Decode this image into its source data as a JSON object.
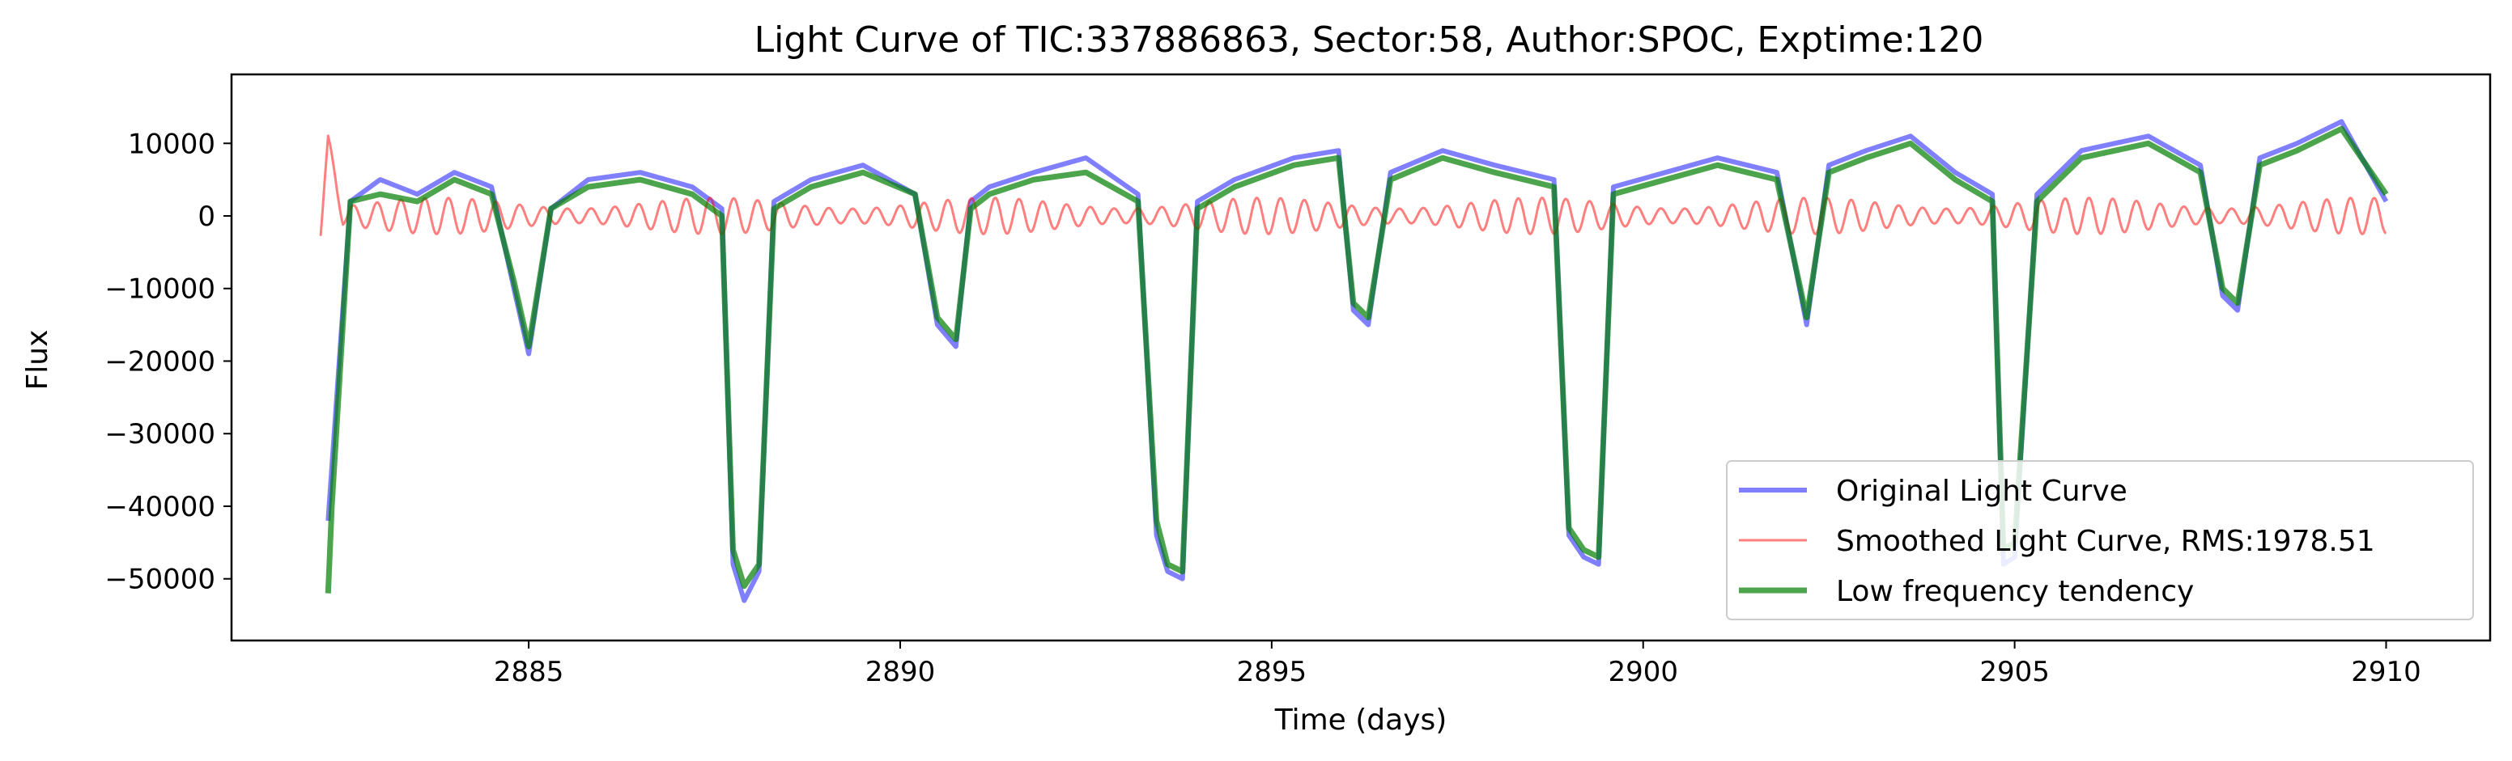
{
  "chart_data": {
    "type": "line",
    "title": "Light Curve of TIC:337886863, Sector:58, Author:SPOC, Exptime:120",
    "xlabel": "Time (days)",
    "ylabel": "Flux",
    "xlim": [
      2881.0,
      2911.4
    ],
    "ylim": [
      -58500,
      19500
    ],
    "xticks": [
      2885,
      2890,
      2895,
      2900,
      2905,
      2910
    ],
    "xtick_labels": [
      "2885",
      "2890",
      "2895",
      "2900",
      "2905",
      "2910"
    ],
    "yticks": [
      10000,
      0,
      -10000,
      -20000,
      -30000,
      -40000,
      -50000
    ],
    "ytick_labels": [
      "10000",
      "0",
      "−10000",
      "−20000",
      "−30000",
      "−40000",
      "−50000"
    ],
    "grid": false,
    "legend_position": "lower-right",
    "series": [
      {
        "name": "Original Light Curve",
        "color": "#0000ff",
        "opacity": 0.5,
        "width": 6,
        "x": [
          2882.3,
          2882.6,
          2883.0,
          2883.5,
          2884.0,
          2884.5,
          2884.8,
          2885.0,
          2885.3,
          2885.8,
          2886.5,
          2887.2,
          2887.6,
          2887.75,
          2887.9,
          2888.1,
          2888.3,
          2888.8,
          2889.5,
          2890.2,
          2890.5,
          2890.75,
          2890.95,
          2891.2,
          2891.8,
          2892.5,
          2893.2,
          2893.45,
          2893.6,
          2893.8,
          2894.0,
          2894.5,
          2895.3,
          2895.9,
          2896.1,
          2896.3,
          2896.6,
          2897.3,
          2898.0,
          2898.8,
          2899.0,
          2899.2,
          2899.4,
          2899.6,
          2900.3,
          2901.0,
          2901.8,
          2902.2,
          2902.5,
          2903.0,
          2903.6,
          2904.2,
          2904.7,
          2904.85,
          2905.0,
          2905.3,
          2905.9,
          2906.8,
          2907.5,
          2907.8,
          2908.0,
          2908.3,
          2908.8,
          2909.4,
          2910.0
        ],
        "y": [
          -42000,
          2000,
          5000,
          3000,
          6000,
          4000,
          -10000,
          -19000,
          1000,
          5000,
          6000,
          4000,
          1000,
          -48000,
          -53000,
          -49000,
          2000,
          5000,
          7000,
          3000,
          -15000,
          -18000,
          2000,
          4000,
          6000,
          8000,
          3000,
          -44000,
          -49000,
          -50000,
          2000,
          5000,
          8000,
          9000,
          -13000,
          -15000,
          6000,
          9000,
          7000,
          5000,
          -44000,
          -47000,
          -48000,
          4000,
          6000,
          8000,
          6000,
          -15000,
          7000,
          9000,
          11000,
          6000,
          3000,
          -48000,
          -47000,
          3000,
          9000,
          11000,
          7000,
          -11000,
          -13000,
          8000,
          10000,
          13000,
          2000
        ]
      },
      {
        "name": "Smoothed Light Curve, RMS:1978.51",
        "color": "#ff0000",
        "opacity": 0.5,
        "width": 3,
        "x": [
          2882.2,
          2882.3,
          2882.5,
          2889.5,
          2890.0,
          2903.0,
          2903.5,
          2910.0
        ],
        "y": [
          -2000,
          10000,
          0,
          0,
          0,
          0,
          0,
          0
        ],
        "oscillation_amplitude": 2500,
        "oscillation_period_days": 0.32
      },
      {
        "name": "Low frequency tendency",
        "color": "#007f00",
        "opacity": 0.7,
        "width": 7,
        "x": [
          2882.3,
          2882.35,
          2882.6,
          2883.0,
          2883.5,
          2884.0,
          2884.5,
          2884.8,
          2885.0,
          2885.3,
          2885.8,
          2886.5,
          2887.2,
          2887.6,
          2887.75,
          2887.9,
          2888.1,
          2888.3,
          2888.8,
          2889.5,
          2890.2,
          2890.5,
          2890.75,
          2890.95,
          2891.2,
          2891.8,
          2892.5,
          2893.2,
          2893.45,
          2893.6,
          2893.8,
          2894.0,
          2894.5,
          2895.3,
          2895.9,
          2896.1,
          2896.3,
          2896.6,
          2897.3,
          2898.0,
          2898.8,
          2899.0,
          2899.2,
          2899.4,
          2899.6,
          2900.3,
          2901.0,
          2901.8,
          2902.2,
          2902.5,
          2903.0,
          2903.6,
          2904.2,
          2904.7,
          2904.85,
          2905.0,
          2905.3,
          2905.9,
          2906.8,
          2907.5,
          2907.8,
          2908.0,
          2908.3,
          2908.8,
          2909.4,
          2910.0
        ],
        "y": [
          -52000,
          -40000,
          2000,
          3000,
          2000,
          5000,
          3000,
          -9000,
          -18000,
          1000,
          4000,
          5000,
          3000,
          0,
          -46000,
          -51000,
          -48000,
          1000,
          4000,
          6000,
          3000,
          -14000,
          -17000,
          1000,
          3000,
          5000,
          6000,
          2000,
          -42000,
          -48000,
          -49000,
          1000,
          4000,
          7000,
          8000,
          -12000,
          -14000,
          5000,
          8000,
          6000,
          4000,
          -43000,
          -46000,
          -47000,
          3000,
          5000,
          7000,
          5000,
          -14000,
          6000,
          8000,
          10000,
          5000,
          2000,
          -46000,
          -45000,
          2000,
          8000,
          10000,
          6000,
          -10000,
          -12000,
          7000,
          9000,
          12000,
          3000
        ]
      }
    ]
  }
}
